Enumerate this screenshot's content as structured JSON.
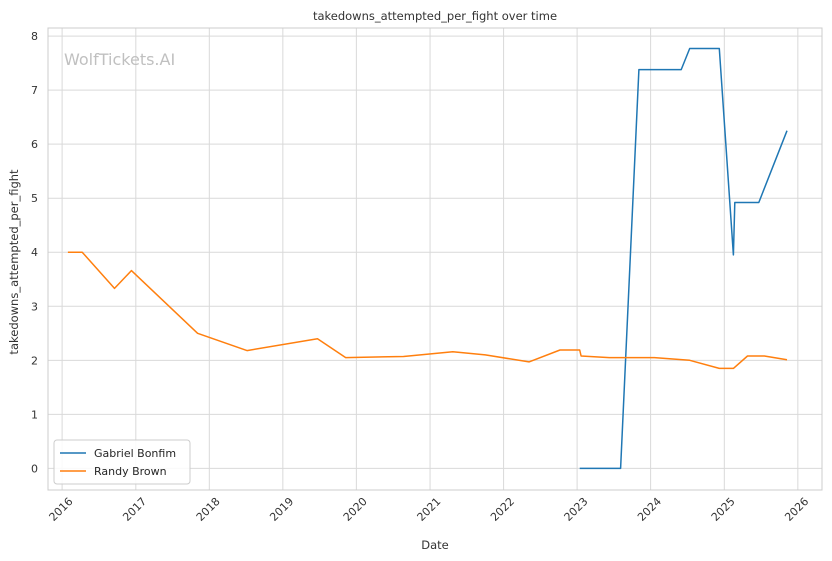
{
  "watermark": "WolfTickets.AI",
  "colors": {
    "gabriel": "#1f77b4",
    "randy": "#ff7f0e",
    "grid": "#d9d9d9",
    "axes": "#cccccc"
  },
  "chart_data": {
    "type": "line",
    "title": "takedowns_attempted_per_fight over time",
    "xlabel": "Date",
    "ylabel": "takedowns_attempted_per_fight",
    "x_type": "date",
    "xlim": [
      "2015-10-23",
      "2026-05-01"
    ],
    "ylim": [
      -0.4,
      8.15
    ],
    "x_ticks": [
      "2016",
      "2017",
      "2018",
      "2019",
      "2020",
      "2021",
      "2022",
      "2023",
      "2024",
      "2025",
      "2026"
    ],
    "y_ticks": [
      0,
      1,
      2,
      3,
      4,
      5,
      6,
      7,
      8
    ],
    "grid": true,
    "legend": "lower-left",
    "series": [
      {
        "name": "Gabriel Bonfim",
        "color": "#1f77b4",
        "x": [
          "2023-01-14",
          "2023-08-05",
          "2023-11-04",
          "2024-06-01",
          "2024-07-13",
          "2024-12-07",
          "2025-02-15",
          "2025-02-22",
          "2025-06-21",
          "2025-11-08"
        ],
        "y": [
          0.0,
          0.0,
          7.38,
          7.38,
          7.77,
          7.77,
          3.95,
          4.92,
          4.92,
          6.25
        ]
      },
      {
        "name": "Randy Brown",
        "color": "#ff7f0e",
        "x": [
          "2016-01-30",
          "2016-04-10",
          "2016-09-17",
          "2016-12-10",
          "2017-11-04",
          "2018-07-07",
          "2019-06-22",
          "2019-11-09",
          "2020-08-22",
          "2021-04-24",
          "2021-10-02",
          "2022-05-07",
          "2022-10-08",
          "2023-01-14",
          "2023-01-21",
          "2023-06-10",
          "2024-01-20",
          "2024-07-13",
          "2024-12-07",
          "2025-02-15",
          "2025-04-26",
          "2025-07-19",
          "2025-11-08"
        ],
        "y": [
          4.0,
          4.0,
          3.33,
          3.66,
          2.5,
          2.18,
          2.4,
          2.05,
          2.07,
          2.16,
          2.1,
          1.97,
          2.19,
          2.19,
          2.08,
          2.05,
          2.05,
          2.0,
          1.85,
          1.85,
          2.08,
          2.08,
          2.01
        ]
      }
    ]
  }
}
